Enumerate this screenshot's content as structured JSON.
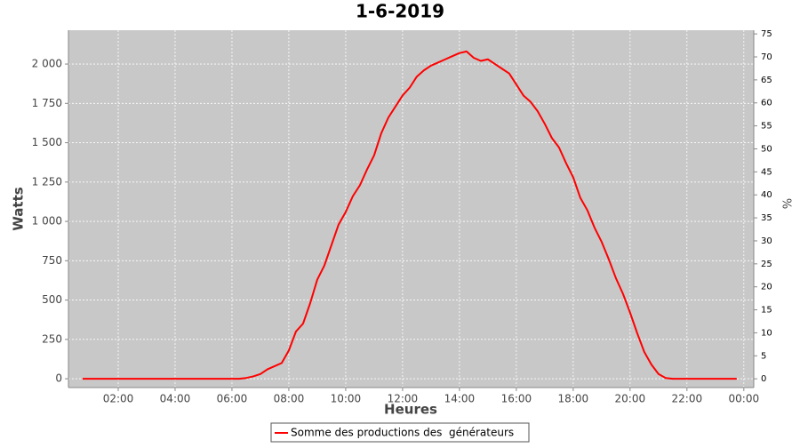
{
  "chart_data": {
    "type": "line",
    "title": "1-6-2019",
    "x_label": "Heures",
    "y_label": "Watts",
    "y2_label": "%",
    "x": [
      0.75,
      1,
      1.25,
      1.5,
      1.75,
      2,
      2.25,
      2.5,
      2.75,
      3,
      3.25,
      3.5,
      3.75,
      4,
      4.25,
      4.5,
      4.75,
      5,
      5.25,
      5.5,
      5.75,
      6,
      6.25,
      6.5,
      6.75,
      7,
      7.25,
      7.5,
      7.75,
      8,
      8.25,
      8.5,
      8.75,
      9,
      9.25,
      9.5,
      9.75,
      10,
      10.25,
      10.5,
      10.75,
      11,
      11.25,
      11.5,
      11.75,
      12,
      12.25,
      12.5,
      12.75,
      13,
      13.25,
      13.5,
      13.75,
      14,
      14.25,
      14.5,
      14.75,
      15,
      15.25,
      15.5,
      15.75,
      16,
      16.25,
      16.5,
      16.75,
      17,
      17.25,
      17.5,
      17.75,
      18,
      18.25,
      18.5,
      18.75,
      19,
      19.25,
      19.5,
      19.75,
      20,
      20.25,
      20.5,
      20.75,
      21,
      21.25,
      21.5,
      21.75,
      22,
      22.25,
      22.5,
      22.75,
      23,
      23.25,
      23.5,
      23.75
    ],
    "series": [
      {
        "name": "Somme des productions des  générateurs",
        "color": "#ff0000",
        "values": [
          0,
          0,
          0,
          0,
          0,
          0,
          0,
          0,
          0,
          0,
          0,
          0,
          0,
          0,
          0,
          0,
          0,
          0,
          0,
          0,
          0,
          0,
          0,
          5,
          15,
          30,
          60,
          80,
          100,
          180,
          300,
          350,
          480,
          630,
          720,
          850,
          980,
          1060,
          1160,
          1230,
          1330,
          1420,
          1560,
          1660,
          1730,
          1800,
          1850,
          1920,
          1960,
          1990,
          2010,
          2030,
          2050,
          2070,
          2080,
          2040,
          2020,
          2030,
          2000,
          1970,
          1940,
          1870,
          1800,
          1760,
          1700,
          1620,
          1530,
          1470,
          1370,
          1280,
          1150,
          1070,
          960,
          870,
          760,
          640,
          540,
          420,
          290,
          170,
          90,
          30,
          5,
          0,
          0,
          0,
          0,
          0,
          0,
          0,
          0,
          0,
          0
        ]
      }
    ],
    "xlim": [
      0.25,
      24.35
    ],
    "xticks": [
      {
        "value": 2,
        "label": "02:00"
      },
      {
        "value": 4,
        "label": "04:00"
      },
      {
        "value": 6,
        "label": "06:00"
      },
      {
        "value": 8,
        "label": "08:00"
      },
      {
        "value": 10,
        "label": "10:00"
      },
      {
        "value": 12,
        "label": "12:00"
      },
      {
        "value": 14,
        "label": "14:00"
      },
      {
        "value": 16,
        "label": "16:00"
      },
      {
        "value": 18,
        "label": "18:00"
      },
      {
        "value": 20,
        "label": "20:00"
      },
      {
        "value": 22,
        "label": "22:00"
      },
      {
        "value": 24,
        "label": "00:00"
      }
    ],
    "ylim": [
      -56,
      2215
    ],
    "yticks": [
      0,
      250,
      500,
      750,
      {
        "value": 1000,
        "label": "1 000"
      },
      {
        "value": 1250,
        "label": "1 250"
      },
      {
        "value": 1500,
        "label": "1 500"
      },
      {
        "value": 1750,
        "label": "1 750"
      },
      {
        "value": 2000,
        "label": "2 000"
      }
    ],
    "y2lim": [
      -1.9,
      75.8
    ],
    "y2ticks": [
      0,
      5,
      10,
      15,
      20,
      25,
      30,
      35,
      40,
      45,
      50,
      55,
      60,
      65,
      70,
      75
    ],
    "grid": true
  }
}
